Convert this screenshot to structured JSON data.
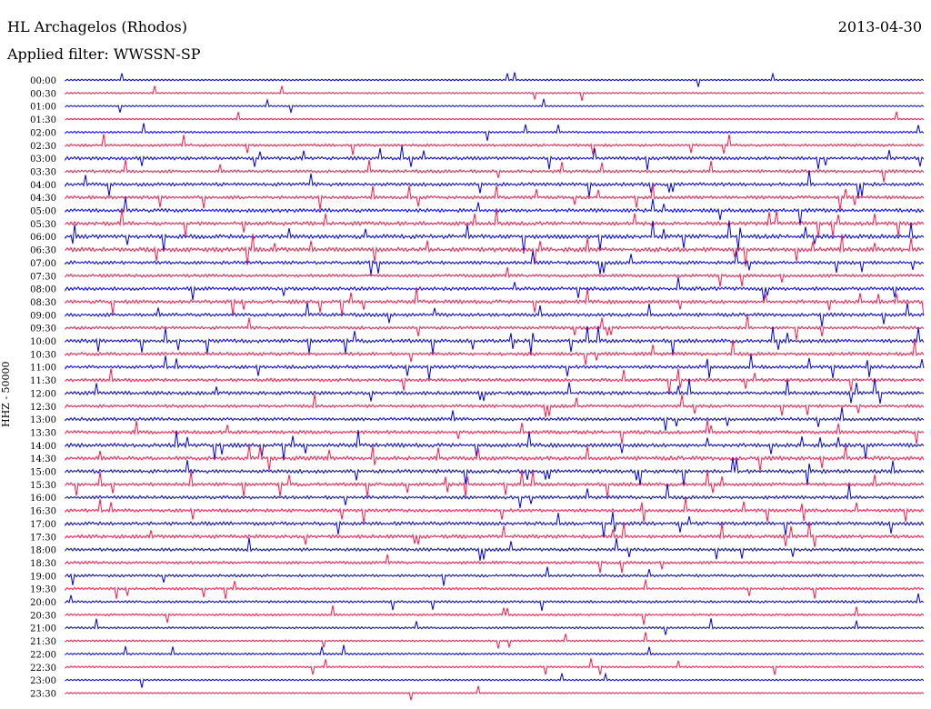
{
  "header": {
    "station": "HL Archagelos (Rhodos)",
    "filter": "Applied filter: WWSSN-SP",
    "date": "2013-04-30"
  },
  "colors": {
    "odd": "#ff1a4a",
    "even": "#0000e6"
  },
  "chart_data": {
    "type": "line",
    "title": "HL Archagelos (Rhodos)",
    "subtitle": "Applied filter: WWSSN-SP",
    "ylabel": "HHZ - 50000",
    "date": "2013-04-30",
    "row_labels": [
      "00:00",
      "00:30",
      "01:00",
      "01:30",
      "02:00",
      "02:30",
      "03:00",
      "03:30",
      "04:00",
      "04:30",
      "05:00",
      "05:30",
      "06:00",
      "06:30",
      "07:00",
      "07:30",
      "08:00",
      "08:30",
      "09:00",
      "09:30",
      "10:00",
      "10:30",
      "11:00",
      "11:30",
      "12:00",
      "12:30",
      "13:00",
      "13:30",
      "14:00",
      "14:30",
      "15:00",
      "15:30",
      "16:00",
      "16:30",
      "17:00",
      "17:30",
      "18:00",
      "18:30",
      "19:00",
      "19:30",
      "20:00",
      "20:30",
      "21:00",
      "21:30",
      "22:00",
      "22:30",
      "23:00",
      "23:30"
    ],
    "activity": [
      0.15,
      0.15,
      0.1,
      0.12,
      0.25,
      0.4,
      0.55,
      0.5,
      0.6,
      0.55,
      0.65,
      0.7,
      0.75,
      0.8,
      0.55,
      0.5,
      0.6,
      0.65,
      0.6,
      0.5,
      0.65,
      0.6,
      0.55,
      0.55,
      0.6,
      0.5,
      0.55,
      0.6,
      0.7,
      0.7,
      0.65,
      0.6,
      0.55,
      0.55,
      0.6,
      0.6,
      0.5,
      0.45,
      0.4,
      0.35,
      0.35,
      0.3,
      0.25,
      0.2,
      0.25,
      0.2,
      0.15,
      0.1
    ]
  }
}
